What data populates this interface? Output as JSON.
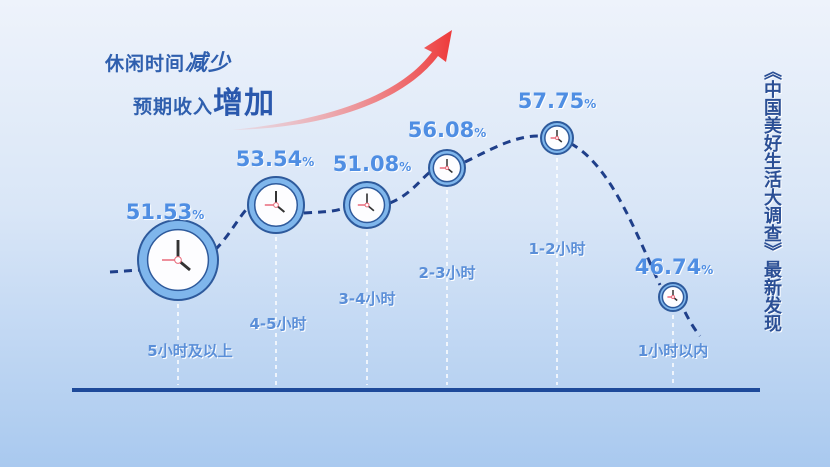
{
  "headline": {
    "line1_a": "休闲时间",
    "line1_b": "减少",
    "line2_a": "预期收入",
    "line2_b": "增加"
  },
  "side_text": "《中国美好生活大调查》最新发现",
  "colors": {
    "line": "#1f3f8a",
    "value": "#4f8ee3",
    "arrow": "#f04848",
    "baseline": "#1e4a9a"
  },
  "chart_data": {
    "type": "line",
    "title": "",
    "unit": "%",
    "categories": [
      "5小时及以上",
      "4-5小时",
      "3-4小时",
      "2-3小时",
      "1-2小时",
      "1小时以内"
    ],
    "values": [
      51.53,
      53.54,
      51.08,
      56.08,
      57.75,
      46.74
    ],
    "value_labels": [
      "51.53",
      "53.54",
      "51.08",
      "56.08",
      "57.75",
      "46.74"
    ],
    "marker": "clock-icon"
  }
}
